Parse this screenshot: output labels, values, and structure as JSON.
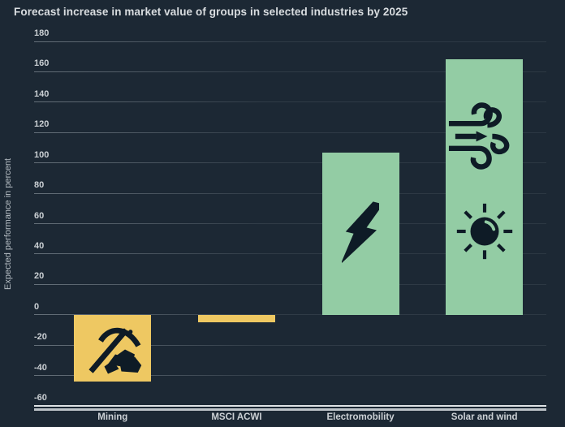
{
  "chart_data": {
    "type": "bar",
    "title": "Forecast increase in market value of groups in selected industries by 2025",
    "ylabel": "Expected performance in percent",
    "xlabel": "",
    "categories": [
      "Mining",
      "MSCI ACWI",
      "Electromobility",
      "Solar and wind"
    ],
    "values": [
      -44,
      -5,
      107,
      168
    ],
    "bar_colors": [
      "#eec862",
      "#eec862",
      "#93cca4",
      "#93cca4"
    ],
    "category_icons": [
      [
        "pickaxe-icon"
      ],
      [],
      [
        "lightning-icon"
      ],
      [
        "wind-icon",
        "sun-icon"
      ]
    ],
    "ylim": [
      -60,
      180
    ],
    "ytick_step": 20,
    "grid": true,
    "legend": false,
    "colors": {
      "background": "#1c2834",
      "bar_yellow": "#eec862",
      "bar_green": "#93cca4",
      "icon_dark": "#0e1b26",
      "grid_line": "#5a656d",
      "title_text": "#d9dde0",
      "tick_text": "#cbd0d4",
      "axis_label_text": "#b6bec4",
      "category_text": "#ccd1d5",
      "baseline_top": "#dfe3e6",
      "baseline_bottom": "#bcc3c8"
    }
  }
}
